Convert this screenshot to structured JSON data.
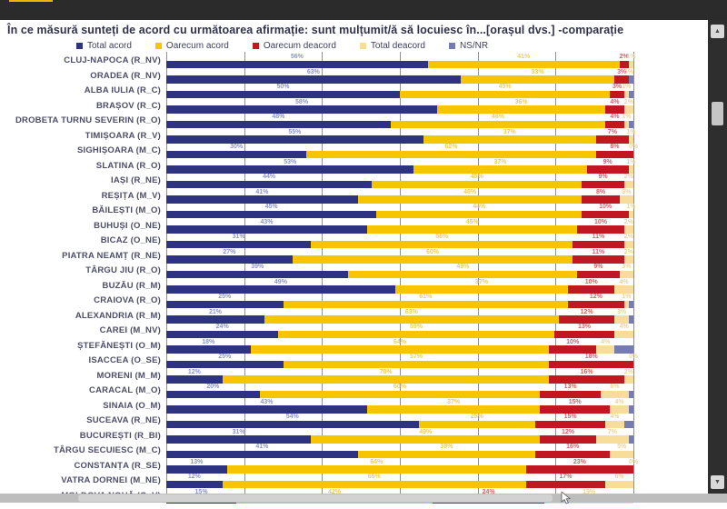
{
  "title": "În ce măsură sunteți de acord cu următoarea afirmație: sunt mulțumit/ă să locuiesc în...[orașul dvs.] -comparație",
  "legend": [
    {
      "label": "Total acord",
      "color": "#2d3380"
    },
    {
      "label": "Oarecum acord",
      "color": "#f6c500"
    },
    {
      "label": "Oarecum deacord",
      "color": "#c01722"
    },
    {
      "label": "Total deacord",
      "color": "#f8dc9a"
    },
    {
      "label": "NS/NR",
      "color": "#767cb0"
    }
  ],
  "chart_data": {
    "type": "bar",
    "stacked": true,
    "orientation": "horizontal",
    "xlim": [
      0,
      100
    ],
    "grid": "vertical, 6 intervals",
    "legend_position": "top",
    "categories": [
      "CLUJ-NAPOCA (R_NV)",
      "ORADEA (R_NV)",
      "ALBA IULIA (R_C)",
      "BRAȘOV (R_C)",
      "DROBETA TURNU SEVERIN (R_O)",
      "TIMIȘOARA (R_V)",
      "SIGHIȘOARA (M_C)",
      "SLATINA (R_O)",
      "IAȘI (R_NE)",
      "REȘIȚA (M_V)",
      "BĂILEȘTI (M_O)",
      "BUHUȘI (O_NE)",
      "BICAZ (O_NE)",
      "PIATRA NEAMȚ (R_NE)",
      "TÂRGU JIU (R_O)",
      "BUZĂU (R_M)",
      "CRAIOVA (R_O)",
      "ALEXANDRIA (R_M)",
      "CAREI (M_NV)",
      "ȘTEFĂNEȘTI (O_M)",
      "ISACCEA (O_SE)",
      "MORENI (M_M)",
      "CARACAL (M_O)",
      "SINAIA (O_M)",
      "SUCEAVA (R_NE)",
      "BUCUREȘTI (R_BI)",
      "TÂRGU SECUIESC (M_C)",
      "CONSTANȚA (R_SE)",
      "VATRA DORNEI (M_NE)",
      "MOLDOVA NOUĂ (O_V)"
    ],
    "series": [
      {
        "name": "Total acord",
        "color": "#2d3380",
        "label_color": "#8b93c9",
        "values": [
          56,
          63,
          50,
          58,
          48,
          55,
          30,
          53,
          44,
          41,
          45,
          43,
          31,
          27,
          39,
          49,
          25,
          21,
          24,
          18,
          25,
          12,
          20,
          43,
          54,
          31,
          41,
          13,
          12,
          15
        ]
      },
      {
        "name": "Oarecum acord",
        "color": "#f6c500",
        "label_color": "#f0cd52",
        "values": [
          41,
          33,
          45,
          36,
          46,
          37,
          62,
          37,
          45,
          48,
          44,
          45,
          56,
          60,
          49,
          37,
          61,
          63,
          59,
          64,
          57,
          70,
          60,
          37,
          25,
          49,
          38,
          64,
          65,
          42
        ]
      },
      {
        "name": "Oarecum deacord",
        "color": "#c01722",
        "label_color": "#d4616a",
        "values": [
          2,
          3,
          3,
          4,
          4,
          7,
          8,
          9,
          9,
          8,
          10,
          10,
          11,
          11,
          9,
          10,
          12,
          12,
          13,
          10,
          18,
          16,
          13,
          15,
          15,
          12,
          16,
          23,
          17,
          24
        ]
      },
      {
        "name": "Total deacord",
        "color": "#f8dc9a",
        "label_color": "#e9d49c",
        "values": [
          1,
          0,
          1,
          2,
          1,
          1,
          0,
          1,
          2,
          3,
          1,
          2,
          2,
          2,
          3,
          4,
          1,
          3,
          4,
          4,
          0,
          2,
          6,
          4,
          4,
          7,
          5,
          0,
          6,
          19
        ]
      },
      {
        "name": "NS/NR",
        "color": "#767cb0",
        "label_color": "#9aa0c8",
        "values": [
          0,
          1,
          1,
          0,
          1,
          0,
          0,
          0,
          0,
          0,
          0,
          0,
          0,
          0,
          0,
          0,
          1,
          1,
          0,
          4,
          0,
          0,
          1,
          1,
          2,
          1,
          0,
          0,
          0,
          0
        ]
      }
    ]
  }
}
